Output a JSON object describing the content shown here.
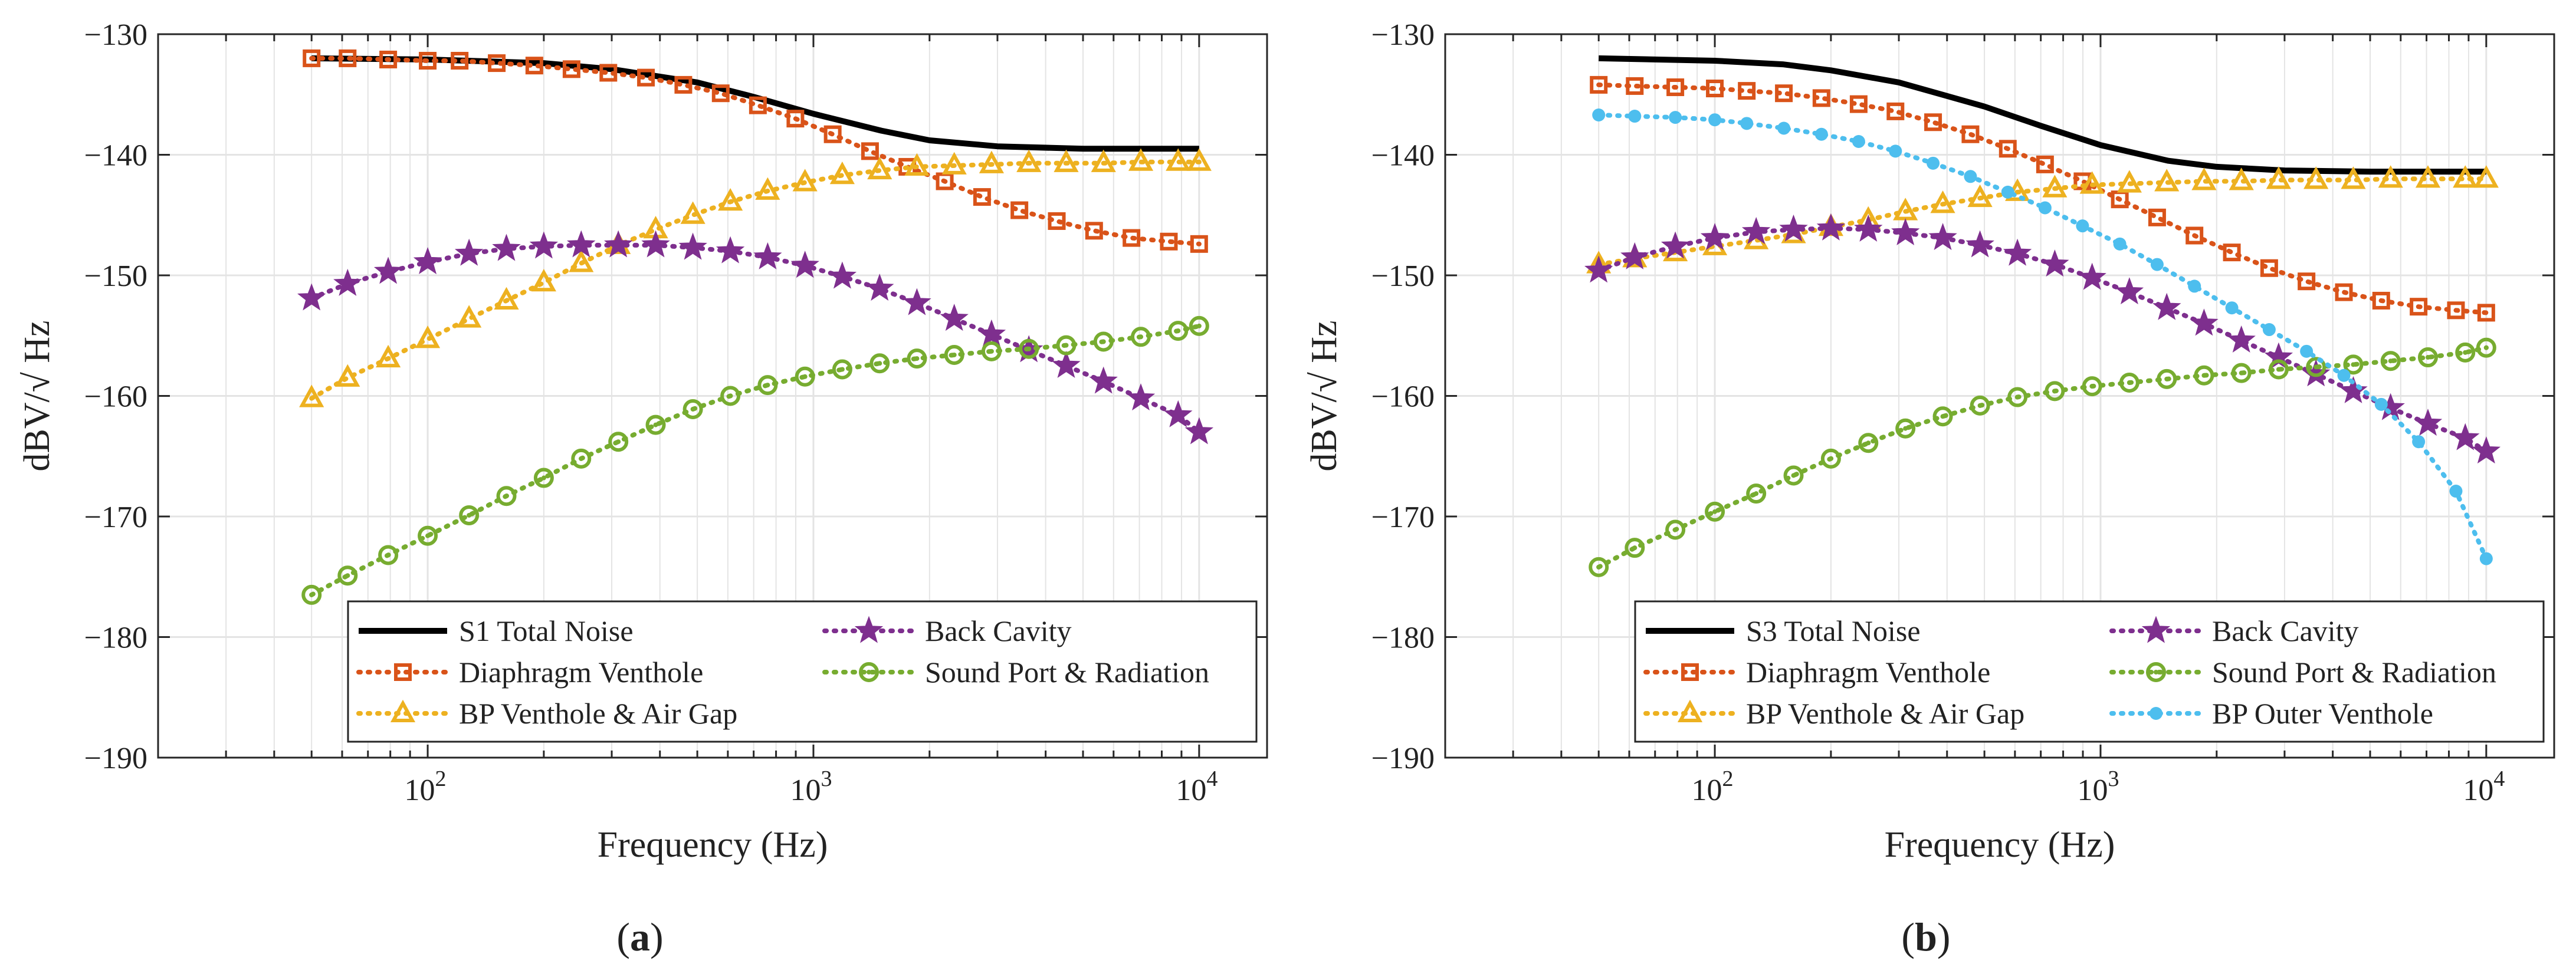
{
  "colors": {
    "total": "#000000",
    "diaphragm": "#D95319",
    "bp_venthole": "#EDB120",
    "back_cavity": "#7E2F8E",
    "sound_port": "#77AC30",
    "bp_outer": "#4DBEEE"
  },
  "chart_data": [
    {
      "type": "line",
      "panel_label": "(a)",
      "panel_label_letter": "a",
      "xlabel": "Frequency (Hz)",
      "ylabel": "dBV/√ Hz",
      "xscale": "log",
      "xlim": [
        20,
        15000
      ],
      "ylim": [
        -190,
        -130
      ],
      "grid": true,
      "legend_position": "bottom",
      "yticks": [
        -130,
        -140,
        -150,
        -160,
        -170,
        -180,
        -190
      ],
      "ytick_labels": [
        "-130",
        "-140",
        "-150",
        "-160",
        "-170",
        "-180",
        "-190"
      ],
      "xticks": [
        {
          "value": 100,
          "base": "10",
          "exp": "2"
        },
        {
          "value": 1000,
          "base": "10",
          "exp": "3"
        },
        {
          "value": 10000,
          "base": "10",
          "exp": "4"
        }
      ],
      "series": [
        {
          "name": "S1 Total Noise",
          "key": "total",
          "marker": "none",
          "style": "solid",
          "x": [
            50,
            100,
            200,
            300,
            500,
            700,
            1000,
            1500,
            2000,
            3000,
            5000,
            10000
          ],
          "y": [
            -132,
            -132.1,
            -132.4,
            -132.9,
            -134,
            -135.2,
            -136.6,
            -138,
            -138.8,
            -139.3,
            -139.5,
            -139.5
          ]
        },
        {
          "name": "Diaphragm Venthole",
          "key": "diaphragm",
          "marker": "square",
          "style": "dotted",
          "x": [
            50,
            62,
            79,
            100,
            121,
            151,
            189,
            236,
            294,
            368,
            460,
            575,
            718,
            898,
            1122,
            1402,
            1752,
            2190,
            2737,
            3420,
            4275,
            5342,
            6677,
            8345,
            10000
          ],
          "y": [
            -132,
            -132,
            -132.1,
            -132.2,
            -132.2,
            -132.4,
            -132.6,
            -132.9,
            -133.2,
            -133.6,
            -134.2,
            -134.9,
            -135.9,
            -137,
            -138.3,
            -139.7,
            -141,
            -142.2,
            -143.5,
            -144.6,
            -145.5,
            -146.3,
            -146.9,
            -147.2,
            -147.4
          ]
        },
        {
          "name": "BP Venthole & Air Gap",
          "key": "bp_venthole",
          "marker": "triangle",
          "style": "dotted",
          "x": [
            50,
            62,
            79,
            100,
            128,
            160,
            200,
            250,
            312,
            390,
            487,
            609,
            761,
            951,
            1188,
            1485,
            1855,
            2318,
            2896,
            3619,
            4522,
            5650,
            7060,
            8822,
            10000
          ],
          "y": [
            -160.2,
            -158.5,
            -156.9,
            -155.3,
            -153.6,
            -152.1,
            -150.6,
            -149,
            -147.5,
            -146.2,
            -145,
            -143.9,
            -143,
            -142.3,
            -141.7,
            -141.3,
            -141,
            -140.9,
            -140.8,
            -140.7,
            -140.7,
            -140.7,
            -140.6,
            -140.6,
            -140.6
          ]
        },
        {
          "name": "Back Cavity",
          "key": "back_cavity",
          "marker": "star",
          "style": "dotted",
          "x": [
            50,
            62,
            79,
            100,
            128,
            160,
            200,
            250,
            312,
            390,
            487,
            609,
            761,
            951,
            1188,
            1485,
            1855,
            2318,
            2896,
            3619,
            4522,
            5650,
            7060,
            8822,
            10000
          ],
          "y": [
            -151.9,
            -150.7,
            -149.7,
            -148.9,
            -148.2,
            -147.8,
            -147.6,
            -147.5,
            -147.5,
            -147.5,
            -147.7,
            -148,
            -148.5,
            -149.2,
            -150.1,
            -151.1,
            -152.3,
            -153.6,
            -154.9,
            -156.2,
            -157.5,
            -158.8,
            -160.2,
            -161.6,
            -163
          ]
        },
        {
          "name": "Sound Port & Radiation",
          "key": "sound_port",
          "marker": "circle-dot",
          "style": "dotted",
          "x": [
            50,
            62,
            79,
            100,
            128,
            160,
            200,
            250,
            312,
            390,
            487,
            609,
            761,
            951,
            1188,
            1485,
            1855,
            2318,
            2896,
            3619,
            4522,
            5650,
            7060,
            8822,
            10000
          ],
          "y": [
            -176.5,
            -174.9,
            -173.2,
            -171.6,
            -169.9,
            -168.3,
            -166.8,
            -165.2,
            -163.8,
            -162.4,
            -161.1,
            -160,
            -159.1,
            -158.4,
            -157.8,
            -157.3,
            -156.9,
            -156.6,
            -156.3,
            -156.1,
            -155.8,
            -155.5,
            -155.1,
            -154.6,
            -154.2
          ]
        }
      ],
      "legend": [
        {
          "label": "S1 Total Noise",
          "key": "total"
        },
        {
          "label": "Back Cavity",
          "key": "back_cavity"
        },
        {
          "label": "Diaphragm Venthole",
          "key": "diaphragm"
        },
        {
          "label": "Sound Port & Radiation",
          "key": "sound_port"
        },
        {
          "label": "BP Venthole & Air Gap",
          "key": "bp_venthole"
        }
      ]
    },
    {
      "type": "line",
      "panel_label": "(b)",
      "panel_label_letter": "b",
      "xlabel": "Frequency (Hz)",
      "ylabel": "dBV/√ Hz",
      "xscale": "log",
      "xlim": [
        20,
        15000
      ],
      "ylim": [
        -190,
        -130
      ],
      "grid": true,
      "legend_position": "bottom",
      "yticks": [
        -130,
        -140,
        -150,
        -160,
        -170,
        -180,
        -190
      ],
      "ytick_labels": [
        "-130",
        "-140",
        "-150",
        "-160",
        "-170",
        "-180",
        "-190"
      ],
      "xticks": [
        {
          "value": 100,
          "base": "10",
          "exp": "2"
        },
        {
          "value": 1000,
          "base": "10",
          "exp": "3"
        },
        {
          "value": 10000,
          "base": "10",
          "exp": "4"
        }
      ],
      "series": [
        {
          "name": "S3 Total Noise",
          "key": "total",
          "marker": "none",
          "style": "solid",
          "x": [
            50,
            100,
            150,
            200,
            300,
            500,
            700,
            1000,
            1500,
            2000,
            3000,
            5000,
            10000
          ],
          "y": [
            -132,
            -132.2,
            -132.5,
            -133,
            -134,
            -136,
            -137.6,
            -139.2,
            -140.5,
            -141,
            -141.3,
            -141.4,
            -141.4
          ]
        },
        {
          "name": "Diaphragm Venthole",
          "key": "diaphragm",
          "marker": "square",
          "style": "dotted",
          "x": [
            50,
            62,
            79,
            100,
            121,
            151,
            189,
            236,
            294,
            368,
            460,
            575,
            718,
            898,
            1122,
            1402,
            1752,
            2190,
            2737,
            3420,
            4275,
            5342,
            6677,
            8345,
            10000
          ],
          "y": [
            -134.2,
            -134.3,
            -134.4,
            -134.5,
            -134.7,
            -134.9,
            -135.3,
            -135.8,
            -136.4,
            -137.3,
            -138.3,
            -139.5,
            -140.8,
            -142.2,
            -143.7,
            -145.2,
            -146.7,
            -148.1,
            -149.4,
            -150.5,
            -151.4,
            -152.1,
            -152.6,
            -152.9,
            -153.1
          ]
        },
        {
          "name": "BP Venthole & Air Gap",
          "key": "bp_venthole",
          "marker": "triangle",
          "style": "dotted",
          "x": [
            50,
            62,
            79,
            100,
            128,
            160,
            200,
            250,
            312,
            390,
            487,
            609,
            761,
            951,
            1188,
            1485,
            1855,
            2318,
            2896,
            3619,
            4522,
            5650,
            7060,
            8822,
            10000
          ],
          "y": [
            -149.1,
            -148.6,
            -148.1,
            -147.6,
            -147.1,
            -146.6,
            -146,
            -145.4,
            -144.7,
            -144.1,
            -143.6,
            -143.1,
            -142.8,
            -142.5,
            -142.4,
            -142.3,
            -142.2,
            -142.2,
            -142.1,
            -142.1,
            -142.1,
            -142,
            -142,
            -142,
            -142
          ]
        },
        {
          "name": "Back Cavity",
          "key": "back_cavity",
          "marker": "star",
          "style": "dotted",
          "x": [
            50,
            62,
            79,
            100,
            128,
            160,
            200,
            250,
            312,
            390,
            487,
            609,
            761,
            951,
            1188,
            1485,
            1855,
            2318,
            2896,
            3619,
            4522,
            5650,
            7060,
            8822,
            10000
          ],
          "y": [
            -149.6,
            -148.5,
            -147.6,
            -146.9,
            -146.4,
            -146.2,
            -146.1,
            -146.2,
            -146.5,
            -146.9,
            -147.5,
            -148.2,
            -149.1,
            -150.2,
            -151.4,
            -152.7,
            -154,
            -155.4,
            -156.8,
            -158.2,
            -159.6,
            -161,
            -162.3,
            -163.5,
            -164.6
          ]
        },
        {
          "name": "Sound Port & Radiation",
          "key": "sound_port",
          "marker": "circle-dot",
          "style": "dotted",
          "x": [
            50,
            62,
            79,
            100,
            128,
            160,
            200,
            250,
            312,
            390,
            487,
            609,
            761,
            951,
            1188,
            1485,
            1855,
            2318,
            2896,
            3619,
            4522,
            5650,
            7060,
            8822,
            10000
          ],
          "y": [
            -174.2,
            -172.6,
            -171.1,
            -169.6,
            -168.1,
            -166.6,
            -165.2,
            -163.9,
            -162.7,
            -161.7,
            -160.8,
            -160.1,
            -159.6,
            -159.2,
            -158.9,
            -158.6,
            -158.3,
            -158.1,
            -157.8,
            -157.6,
            -157.4,
            -157.1,
            -156.8,
            -156.4,
            -156
          ]
        },
        {
          "name": "BP Outer Venthole",
          "key": "bp_outer",
          "marker": "dot",
          "style": "dotted",
          "x": [
            50,
            62,
            79,
            100,
            121,
            151,
            189,
            236,
            294,
            368,
            460,
            575,
            718,
            898,
            1122,
            1402,
            1752,
            2190,
            2737,
            3420,
            4275,
            5342,
            6677,
            8345,
            10000
          ],
          "y": [
            -136.7,
            -136.8,
            -136.9,
            -137.1,
            -137.4,
            -137.8,
            -138.3,
            -138.9,
            -139.7,
            -140.7,
            -141.8,
            -143.1,
            -144.4,
            -145.9,
            -147.4,
            -149.1,
            -150.9,
            -152.7,
            -154.5,
            -156.3,
            -158.3,
            -160.7,
            -163.8,
            -167.9,
            -173.5
          ]
        }
      ],
      "legend": [
        {
          "label": "S3 Total Noise",
          "key": "total"
        },
        {
          "label": "Back Cavity",
          "key": "back_cavity"
        },
        {
          "label": "Diaphragm Venthole",
          "key": "diaphragm"
        },
        {
          "label": "Sound Port & Radiation",
          "key": "sound_port"
        },
        {
          "label": "BP Venthole & Air Gap",
          "key": "bp_venthole"
        },
        {
          "label": "BP Outer Venthole",
          "key": "bp_outer"
        }
      ]
    }
  ]
}
